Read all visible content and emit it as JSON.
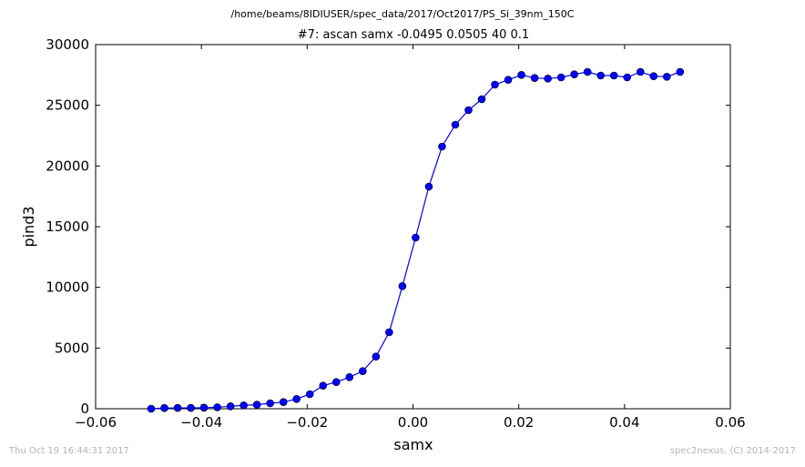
{
  "figure": {
    "path_title": "/home/beams/8IDIUSER/spec_data/2017/Oct2017/PS_Si_39nm_150C",
    "footer_left": "Thu Oct 19 16:44:31 2017",
    "footer_right": "spec2nexus, (C) 2014-2017"
  },
  "chart_data": {
    "type": "line",
    "title": "#7: ascan  samx -0.0495 0.0505  40 0.1",
    "xlabel": "samx",
    "ylabel": "pind3",
    "xlim": [
      -0.06,
      0.06
    ],
    "ylim": [
      0,
      30000
    ],
    "x_ticks": [
      -0.06,
      -0.04,
      -0.02,
      0.0,
      0.02,
      0.04,
      0.06
    ],
    "x_tick_labels": [
      "−0.06",
      "−0.04",
      "−0.02",
      "0.00",
      "0.02",
      "0.04",
      "0.06"
    ],
    "y_ticks": [
      0,
      5000,
      10000,
      15000,
      20000,
      25000,
      30000
    ],
    "y_tick_labels": [
      "0",
      "5000",
      "10000",
      "15000",
      "20000",
      "25000",
      "30000"
    ],
    "grid": false,
    "legend": false,
    "series": [
      {
        "color": "#0000ff",
        "marker": "circle",
        "x": [
          -0.0495,
          -0.047,
          -0.0445,
          -0.042,
          -0.0395,
          -0.037,
          -0.0345,
          -0.032,
          -0.0295,
          -0.027,
          -0.0245,
          -0.022,
          -0.0195,
          -0.017,
          -0.0145,
          -0.012,
          -0.0095,
          -0.007,
          -0.0045,
          -0.002,
          0.0005,
          0.003,
          0.0055,
          0.008,
          0.0105,
          0.013,
          0.0155,
          0.018,
          0.0205,
          0.023,
          0.0255,
          0.028,
          0.0305,
          0.033,
          0.0355,
          0.038,
          0.0405,
          0.043,
          0.0455,
          0.048,
          0.0505
        ],
        "y": [
          0,
          60,
          70,
          70,
          90,
          120,
          200,
          280,
          330,
          450,
          550,
          800,
          1200,
          1900,
          2200,
          2600,
          3100,
          4300,
          6300,
          10100,
          14100,
          18300,
          21600,
          23400,
          24600,
          25500,
          26700,
          27100,
          27500,
          27250,
          27200,
          27300,
          27550,
          27750,
          27450,
          27450,
          27300,
          27750,
          27400,
          27350,
          27750
        ]
      }
    ]
  }
}
